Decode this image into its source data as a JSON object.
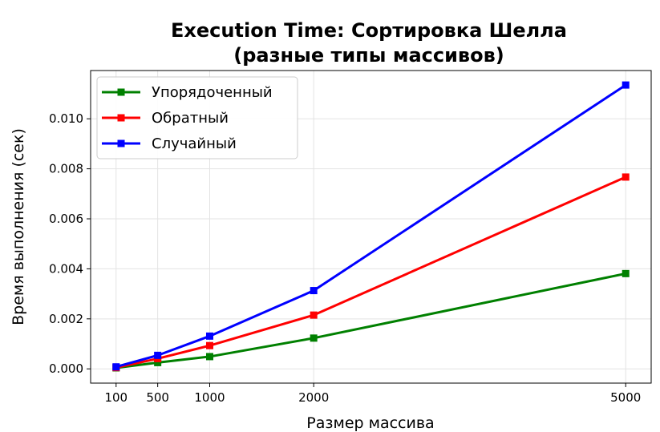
{
  "chart_data": {
    "type": "line",
    "title_line1": "Execution Time: Сортировка Шелла",
    "title_line2": "(разные типы массивов)",
    "xlabel": "Размер массива",
    "ylabel": "Время выполнения (сек)",
    "x": [
      100,
      500,
      1000,
      2000,
      5000
    ],
    "x_ticks": [
      "100",
      "500",
      "1000",
      "2000",
      "5000"
    ],
    "y_ticks": [
      "0.000",
      "0.002",
      "0.004",
      "0.006",
      "0.008",
      "0.010"
    ],
    "y_tick_values": [
      0,
      0.002,
      0.004,
      0.006,
      0.008,
      0.01
    ],
    "xlim": [
      -145,
      5245
    ],
    "ylim": [
      -0.00057,
      0.01193
    ],
    "grid": true,
    "legend_position": "top-left",
    "series": [
      {
        "name": "Упорядоченный",
        "color": "#008000",
        "marker": "square",
        "values": [
          4e-05,
          0.00025,
          0.00049,
          0.00123,
          0.00381
        ]
      },
      {
        "name": "Обратный",
        "color": "#ff0000",
        "marker": "square",
        "values": [
          5e-05,
          0.00041,
          0.00093,
          0.00215,
          0.00767
        ]
      },
      {
        "name": "Случайный",
        "color": "#0000ff",
        "marker": "square",
        "values": [
          8e-05,
          0.00054,
          0.00131,
          0.00313,
          0.01135
        ]
      }
    ]
  }
}
